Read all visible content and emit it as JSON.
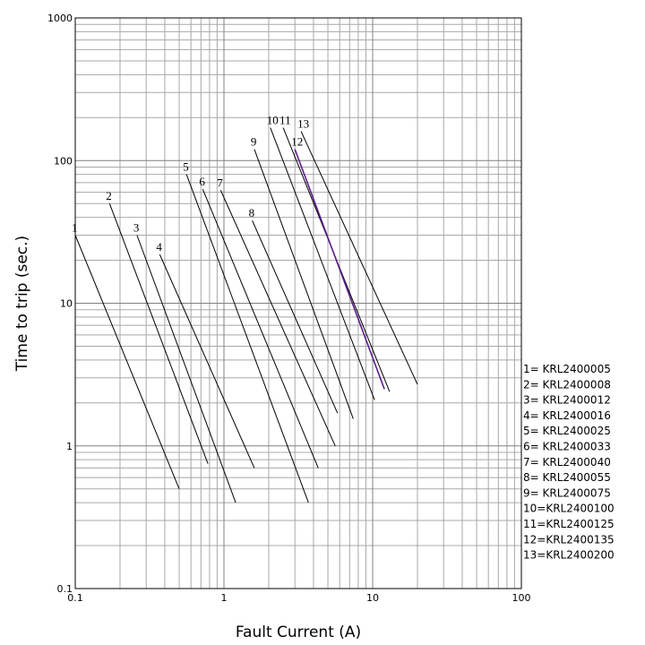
{
  "chart_data": {
    "type": "line",
    "title": "",
    "xlabel": "Fault Current (A)",
    "ylabel": "Time to trip (sec.)",
    "xscale": "log",
    "yscale": "log",
    "xlim": [
      0.1,
      100
    ],
    "ylim": [
      0.1,
      1000
    ],
    "grid": true,
    "legend_position": "right",
    "x_ticks": [
      "0.1",
      "1",
      "10",
      "100"
    ],
    "y_ticks": [
      "0.1",
      "1",
      "10",
      "100",
      "1000"
    ],
    "series": [
      {
        "label": "1",
        "legend": "1= KRL2400005",
        "color": "#000000",
        "points": [
          [
            0.1,
            30
          ],
          [
            0.5,
            0.5
          ]
        ]
      },
      {
        "label": "2",
        "legend": "2= KRL2400008",
        "color": "#000000",
        "points": [
          [
            0.17,
            50
          ],
          [
            0.78,
            0.75
          ]
        ]
      },
      {
        "label": "3",
        "legend": "3= KRL2400012",
        "color": "#000000",
        "points": [
          [
            0.26,
            30
          ],
          [
            1.2,
            0.4
          ]
        ]
      },
      {
        "label": "4",
        "legend": "4= KRL2400016",
        "color": "#000000",
        "points": [
          [
            0.37,
            22
          ],
          [
            1.6,
            0.7
          ]
        ]
      },
      {
        "label": "5",
        "legend": "5= KRL2400025",
        "color": "#000000",
        "points": [
          [
            0.56,
            80
          ],
          [
            3.7,
            0.4
          ]
        ]
      },
      {
        "label": "6",
        "legend": "6= KRL2400033",
        "color": "#000000",
        "points": [
          [
            0.72,
            63
          ],
          [
            4.3,
            0.7
          ]
        ]
      },
      {
        "label": "7",
        "legend": "7= KRL2400040",
        "color": "#000000",
        "points": [
          [
            0.95,
            62
          ],
          [
            5.6,
            1.0
          ]
        ]
      },
      {
        "label": "8",
        "legend": "8= KRL2400055",
        "color": "#000000",
        "points": [
          [
            1.55,
            38
          ],
          [
            5.8,
            1.7
          ]
        ]
      },
      {
        "label": "9",
        "legend": "9= KRL2400075",
        "color": "#000000",
        "points": [
          [
            1.6,
            120
          ],
          [
            7.4,
            1.55
          ]
        ]
      },
      {
        "label": "10",
        "legend": "10=KRL2400100",
        "color": "#000000",
        "points": [
          [
            2.05,
            170
          ],
          [
            10.3,
            2.1
          ]
        ]
      },
      {
        "label": "11",
        "legend": "11=KRL2400125",
        "color": "#000000",
        "points": [
          [
            2.5,
            170
          ],
          [
            13,
            2.4
          ]
        ]
      },
      {
        "label": "12",
        "legend": "12=KRL2400135",
        "color": "#5b1e8a",
        "points": [
          [
            3.0,
            120
          ],
          [
            12,
            2.5
          ]
        ]
      },
      {
        "label": "13",
        "legend": "13=KRL2400200",
        "color": "#000000",
        "points": [
          [
            3.3,
            160
          ],
          [
            20,
            2.7
          ]
        ]
      }
    ]
  }
}
